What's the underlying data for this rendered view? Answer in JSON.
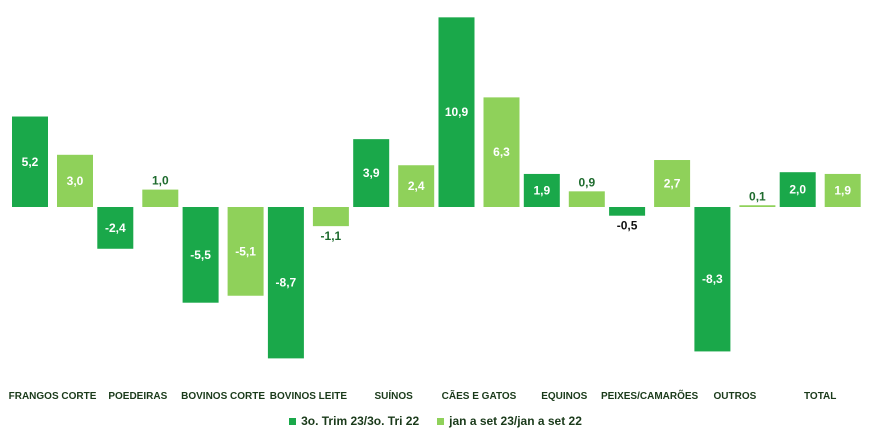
{
  "chart_data": {
    "type": "bar",
    "categories": [
      "FRANGOS CORTE",
      "POEDEIRAS",
      "BOVINOS CORTE",
      "BOVINOS LEITE",
      "SUÍNOS",
      "CÃES E GATOS",
      "EQUINOS",
      "PEIXES/CAMARÕES",
      "OUTROS",
      "TOTAL"
    ],
    "series": [
      {
        "name": "3o. Trim 23/3o. Tri 22",
        "color": "#1aa84a",
        "values": [
          5.2,
          -2.4,
          -5.5,
          -8.7,
          3.9,
          10.9,
          1.9,
          -0.5,
          -8.3,
          2.0
        ],
        "labels": [
          "5,2",
          "-2,4",
          "-5,5",
          "-8,7",
          "3,9",
          "10,9",
          "1,9",
          "-0,5",
          "-8,3",
          "2,0"
        ]
      },
      {
        "name": "jan a set 23/jan a set 22",
        "color": "#8fd15a",
        "values": [
          3.0,
          1.0,
          -5.1,
          -1.1,
          2.4,
          6.3,
          0.9,
          2.7,
          0.1,
          1.9
        ],
        "labels": [
          "3,0",
          "1,0",
          "-5,1",
          "-1,1",
          "2,4",
          "6,3",
          "0,9",
          "2,7",
          "0,1",
          "1,9"
        ]
      }
    ],
    "ylim": [
      -9,
      11
    ],
    "title": "",
    "xlabel": "",
    "ylabel": "",
    "legend_position": "bottom"
  }
}
